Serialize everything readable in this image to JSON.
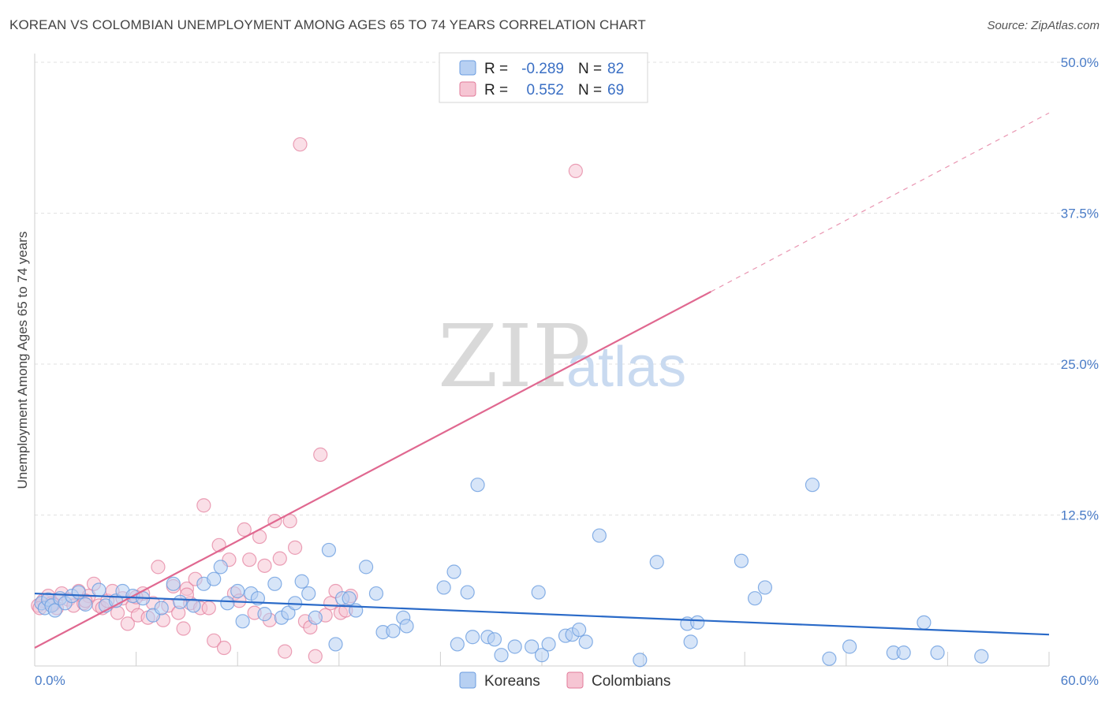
{
  "title": "KOREAN VS COLOMBIAN UNEMPLOYMENT AMONG AGES 65 TO 74 YEARS CORRELATION CHART",
  "source": "Source: ZipAtlas.com",
  "watermark": {
    "zip": "ZIP",
    "atlas": "atlas"
  },
  "legend": {
    "koreans": {
      "r_label": "R =",
      "r_value": "-0.289",
      "n_label": "N =",
      "n_value": "82"
    },
    "colombians": {
      "r_label": "R =",
      "r_value": "0.552",
      "n_label": "N =",
      "n_value": "69"
    }
  },
  "bottom_legend": {
    "koreans": "Koreans",
    "colombians": "Colombians"
  },
  "colors": {
    "koreans": "#6b9de0",
    "koreans_fill": "#b7d0f2",
    "colombians": "#e27a9a",
    "colombians_fill": "#f6c5d3",
    "korean_line": "#2a6ac8",
    "colombian_line": "#e06890",
    "tick_label": "#4a7cc7"
  },
  "chart_data": {
    "type": "scatter",
    "xlabel": "",
    "ylabel": "Unemployment Among Ages 65 to 74 years",
    "xlim": [
      0,
      60
    ],
    "ylim": [
      0,
      50
    ],
    "x_ticks": [
      "0.0%",
      "60.0%"
    ],
    "y_ticks": [
      {
        "value": 12.5,
        "label": "12.5%"
      },
      {
        "value": 25.0,
        "label": "25.0%"
      },
      {
        "value": 37.5,
        "label": "37.5%"
      },
      {
        "value": 50.0,
        "label": "50.0%"
      }
    ],
    "grid": true,
    "legend_position": "top-center",
    "series": [
      {
        "name": "Koreans",
        "trend": {
          "x": [
            0,
            60
          ],
          "y": [
            6.0,
            2.6
          ]
        },
        "points": [
          [
            0.4,
            5.2
          ],
          [
            0.6,
            4.8
          ],
          [
            0.8,
            5.5
          ],
          [
            1.0,
            5.0
          ],
          [
            1.2,
            4.6
          ],
          [
            1.5,
            5.6
          ],
          [
            1.8,
            5.2
          ],
          [
            2.2,
            5.8
          ],
          [
            2.6,
            6.1
          ],
          [
            3.0,
            5.1
          ],
          [
            3.8,
            6.3
          ],
          [
            4.2,
            5.0
          ],
          [
            4.8,
            5.4
          ],
          [
            5.2,
            6.2
          ],
          [
            5.8,
            5.8
          ],
          [
            6.4,
            5.6
          ],
          [
            7.0,
            4.2
          ],
          [
            7.5,
            4.8
          ],
          [
            8.2,
            6.8
          ],
          [
            8.6,
            5.3
          ],
          [
            9.4,
            5.0
          ],
          [
            10.0,
            6.8
          ],
          [
            10.6,
            7.2
          ],
          [
            11.0,
            8.2
          ],
          [
            11.4,
            5.2
          ],
          [
            12.0,
            6.2
          ],
          [
            12.3,
            3.7
          ],
          [
            12.8,
            6.0
          ],
          [
            13.2,
            5.6
          ],
          [
            13.6,
            4.3
          ],
          [
            14.2,
            6.8
          ],
          [
            14.6,
            4.0
          ],
          [
            15.0,
            4.4
          ],
          [
            15.4,
            5.2
          ],
          [
            15.8,
            7.0
          ],
          [
            16.2,
            6.0
          ],
          [
            16.6,
            4.0
          ],
          [
            17.4,
            9.6
          ],
          [
            17.8,
            1.8
          ],
          [
            18.2,
            5.6
          ],
          [
            18.6,
            5.6
          ],
          [
            19.0,
            4.6
          ],
          [
            19.6,
            8.2
          ],
          [
            20.2,
            6.0
          ],
          [
            20.6,
            2.8
          ],
          [
            21.2,
            2.9
          ],
          [
            21.8,
            4.0
          ],
          [
            22.0,
            3.3
          ],
          [
            24.2,
            6.5
          ],
          [
            24.8,
            7.8
          ],
          [
            25.0,
            1.8
          ],
          [
            25.6,
            6.1
          ],
          [
            25.9,
            2.4
          ],
          [
            26.2,
            15.0
          ],
          [
            26.8,
            2.4
          ],
          [
            27.2,
            2.2
          ],
          [
            27.6,
            0.9
          ],
          [
            28.4,
            1.6
          ],
          [
            29.4,
            1.6
          ],
          [
            29.8,
            6.1
          ],
          [
            30.0,
            0.9
          ],
          [
            30.4,
            1.8
          ],
          [
            31.4,
            2.5
          ],
          [
            31.8,
            2.6
          ],
          [
            32.2,
            3.0
          ],
          [
            32.6,
            2.0
          ],
          [
            33.4,
            10.8
          ],
          [
            35.8,
            0.5
          ],
          [
            36.8,
            8.6
          ],
          [
            38.6,
            3.5
          ],
          [
            38.8,
            2.0
          ],
          [
            39.2,
            3.6
          ],
          [
            41.8,
            8.7
          ],
          [
            42.6,
            5.6
          ],
          [
            43.2,
            6.5
          ],
          [
            46.0,
            15.0
          ],
          [
            47.0,
            0.6
          ],
          [
            48.2,
            1.6
          ],
          [
            50.8,
            1.1
          ],
          [
            51.4,
            1.1
          ],
          [
            52.6,
            3.6
          ],
          [
            53.4,
            1.1
          ],
          [
            56.0,
            0.8
          ]
        ]
      },
      {
        "name": "Colombians",
        "trend": {
          "x": [
            0,
            40
          ],
          "y": [
            1.5,
            31.0
          ],
          "dashed_to": {
            "x": 60,
            "y": 45.8
          }
        },
        "points": [
          [
            0.2,
            5.0
          ],
          [
            0.5,
            5.4
          ],
          [
            0.8,
            5.8
          ],
          [
            1.0,
            5.2
          ],
          [
            1.3,
            4.8
          ],
          [
            1.6,
            6.0
          ],
          [
            2.0,
            5.5
          ],
          [
            2.3,
            5.0
          ],
          [
            2.6,
            6.2
          ],
          [
            2.9,
            5.2
          ],
          [
            3.2,
            5.8
          ],
          [
            3.5,
            6.8
          ],
          [
            3.8,
            5.0
          ],
          [
            4.0,
            4.8
          ],
          [
            4.3,
            5.4
          ],
          [
            4.6,
            6.2
          ],
          [
            4.9,
            4.4
          ],
          [
            5.2,
            5.6
          ],
          [
            5.5,
            3.5
          ],
          [
            5.8,
            5.0
          ],
          [
            6.1,
            4.2
          ],
          [
            6.4,
            6.0
          ],
          [
            6.7,
            4.0
          ],
          [
            7.0,
            5.2
          ],
          [
            7.3,
            8.2
          ],
          [
            7.6,
            3.8
          ],
          [
            7.9,
            5.0
          ],
          [
            8.2,
            6.6
          ],
          [
            8.5,
            4.4
          ],
          [
            8.8,
            3.1
          ],
          [
            9.0,
            6.4
          ],
          [
            9.2,
            5.2
          ],
          [
            9.5,
            7.2
          ],
          [
            9.8,
            4.8
          ],
          [
            10.0,
            13.3
          ],
          [
            10.3,
            4.8
          ],
          [
            10.6,
            2.1
          ],
          [
            10.9,
            10.0
          ],
          [
            11.2,
            1.5
          ],
          [
            11.5,
            8.8
          ],
          [
            11.8,
            6.0
          ],
          [
            12.1,
            5.4
          ],
          [
            12.4,
            11.3
          ],
          [
            12.7,
            8.8
          ],
          [
            13.0,
            4.4
          ],
          [
            13.3,
            10.7
          ],
          [
            13.6,
            8.3
          ],
          [
            13.9,
            3.8
          ],
          [
            14.2,
            12.0
          ],
          [
            14.5,
            8.9
          ],
          [
            14.8,
            1.2
          ],
          [
            15.1,
            12.0
          ],
          [
            15.4,
            9.8
          ],
          [
            15.7,
            43.2
          ],
          [
            16.0,
            3.7
          ],
          [
            16.3,
            3.2
          ],
          [
            16.6,
            0.8
          ],
          [
            16.9,
            17.5
          ],
          [
            17.2,
            4.2
          ],
          [
            17.5,
            5.2
          ],
          [
            17.8,
            6.2
          ],
          [
            18.1,
            4.4
          ],
          [
            18.4,
            4.6
          ],
          [
            18.7,
            5.8
          ],
          [
            32.0,
            41.0
          ],
          [
            3.0,
            5.4
          ],
          [
            6.0,
            5.7
          ],
          [
            9.0,
            5.9
          ],
          [
            0.3,
            4.8
          ],
          [
            1.1,
            5.1
          ]
        ]
      }
    ]
  }
}
